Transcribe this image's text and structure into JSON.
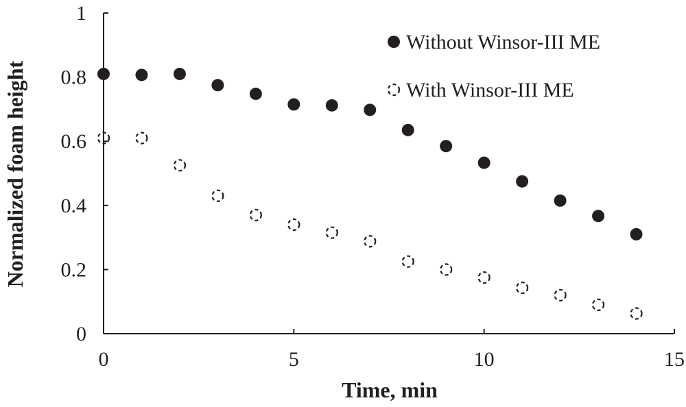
{
  "colors": {
    "ink": "#231f20",
    "background": "#ffffff"
  },
  "chart_data": {
    "type": "scatter",
    "title": "",
    "xlabel": "Time, min",
    "ylabel": "Normalized foam height",
    "xlim": [
      0,
      15
    ],
    "ylim": [
      0,
      1
    ],
    "xticks": [
      0,
      5,
      10,
      15
    ],
    "xtick_labels": [
      "0",
      "5",
      "10",
      "15"
    ],
    "yticks": [
      0,
      0.2,
      0.4,
      0.6,
      0.8,
      1
    ],
    "ytick_labels": [
      "0",
      "0.2",
      "0.4",
      "0.6",
      "0.8",
      "1"
    ],
    "grid": false,
    "legend_position": "top-right",
    "series": [
      {
        "name": "Without Winsor-III ME",
        "marker": "filled-circle",
        "x": [
          0,
          1,
          2,
          3,
          4,
          5,
          6,
          7,
          8,
          9,
          10,
          11,
          12,
          13,
          14
        ],
        "y": [
          0.81,
          0.807,
          0.81,
          0.775,
          0.748,
          0.715,
          0.712,
          0.698,
          0.635,
          0.585,
          0.533,
          0.475,
          0.415,
          0.367,
          0.31
        ]
      },
      {
        "name": "With Winsor-III ME",
        "marker": "dashed-open-circle",
        "x": [
          0,
          1,
          2,
          3,
          4,
          5,
          6,
          7,
          8,
          9,
          10,
          11,
          12,
          13,
          14
        ],
        "y": [
          0.61,
          0.61,
          0.525,
          0.43,
          0.37,
          0.34,
          0.315,
          0.288,
          0.225,
          0.2,
          0.175,
          0.143,
          0.12,
          0.09,
          0.063
        ]
      }
    ]
  }
}
